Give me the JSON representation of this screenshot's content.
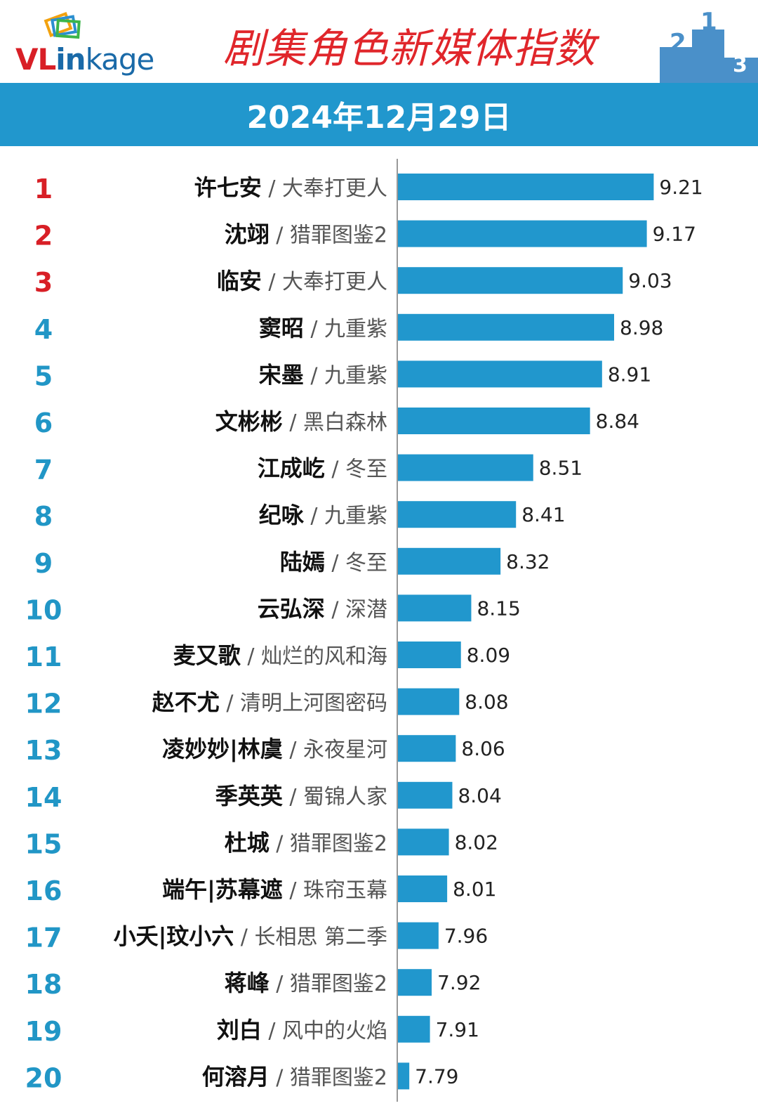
{
  "header": {
    "logo_text_left": "VL",
    "logo_text_mid": "in",
    "logo_text_right": "kage",
    "title": "剧集角色新媒体指数",
    "date": "2024年12月29日",
    "podium_labels": [
      "2",
      "1",
      "3"
    ]
  },
  "colors": {
    "bar": "#2197cd",
    "banner": "#2197cd",
    "title": "#e0262b",
    "rank_top3": "#d81f26",
    "rank_other": "#2196c6",
    "podium": "#4a90c9"
  },
  "chart_data": {
    "type": "bar",
    "orientation": "horizontal",
    "xlim": [
      7.72,
      9.4
    ],
    "rows": [
      {
        "rank": "1",
        "character": "许七安",
        "show": "大奉打更人",
        "value": 9.21,
        "label": "9.21"
      },
      {
        "rank": "2",
        "character": "沈翊",
        "show": "猎罪图鉴2",
        "value": 9.17,
        "label": "9.17"
      },
      {
        "rank": "3",
        "character": "临安",
        "show": "大奉打更人",
        "value": 9.03,
        "label": "9.03"
      },
      {
        "rank": "4",
        "character": "窦昭",
        "show": "九重紫",
        "value": 8.98,
        "label": "8.98"
      },
      {
        "rank": "5",
        "character": "宋墨",
        "show": "九重紫",
        "value": 8.91,
        "label": "8.91"
      },
      {
        "rank": "6",
        "character": "文彬彬",
        "show": "黑白森林",
        "value": 8.84,
        "label": "8.84"
      },
      {
        "rank": "7",
        "character": "江成屹",
        "show": "冬至",
        "value": 8.51,
        "label": "8.51"
      },
      {
        "rank": "8",
        "character": "纪咏",
        "show": "九重紫",
        "value": 8.41,
        "label": "8.41"
      },
      {
        "rank": "9",
        "character": "陆嫣",
        "show": "冬至",
        "value": 8.32,
        "label": "8.32"
      },
      {
        "rank": "10",
        "character": "云弘深",
        "show": "深潜",
        "value": 8.15,
        "label": "8.15"
      },
      {
        "rank": "11",
        "character": "麦又歌",
        "show": "灿烂的风和海",
        "value": 8.09,
        "label": "8.09"
      },
      {
        "rank": "12",
        "character": "赵不尤",
        "show": "清明上河图密码",
        "value": 8.08,
        "label": "8.08"
      },
      {
        "rank": "13",
        "character": "凌妙妙|林虞",
        "show": "永夜星河",
        "value": 8.06,
        "label": "8.06"
      },
      {
        "rank": "14",
        "character": "季英英",
        "show": "蜀锦人家",
        "value": 8.04,
        "label": "8.04"
      },
      {
        "rank": "15",
        "character": "杜城",
        "show": "猎罪图鉴2",
        "value": 8.02,
        "label": "8.02"
      },
      {
        "rank": "16",
        "character": "端午|苏幕遮",
        "show": "珠帘玉幕",
        "value": 8.01,
        "label": "8.01"
      },
      {
        "rank": "17",
        "character": "小夭|玟小六",
        "show": "长相思 第二季",
        "value": 7.96,
        "label": "7.96"
      },
      {
        "rank": "18",
        "character": "蒋峰",
        "show": "猎罪图鉴2",
        "value": 7.92,
        "label": "7.92"
      },
      {
        "rank": "19",
        "character": "刘白",
        "show": "风中的火焰",
        "value": 7.91,
        "label": "7.91"
      },
      {
        "rank": "20",
        "character": "何溶月",
        "show": "猎罪图鉴2",
        "value": 7.79,
        "label": "7.79"
      }
    ]
  }
}
